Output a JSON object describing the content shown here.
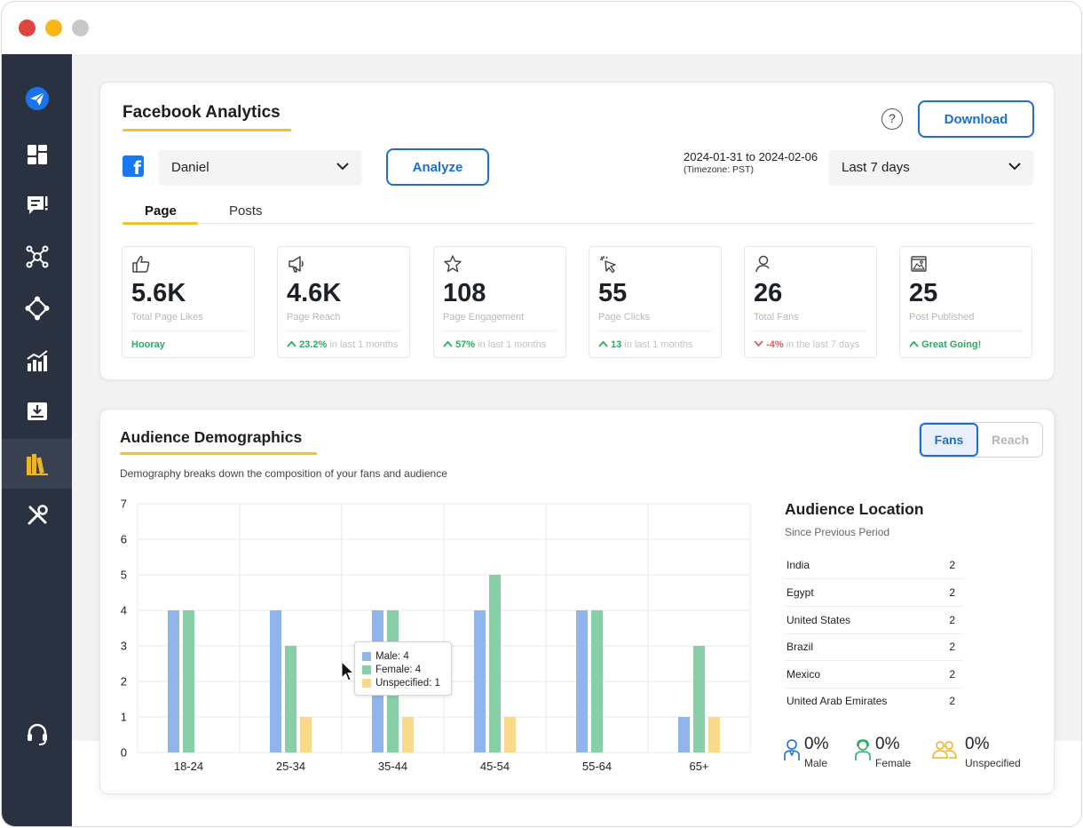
{
  "window": {
    "controls": [
      "close",
      "minimize",
      "zoom"
    ]
  },
  "sidebar": {
    "items": [
      {
        "icon": "paper-plane-logo-icon",
        "active": false
      },
      {
        "icon": "dashboard-icon",
        "active": false
      },
      {
        "icon": "message-alert-icon",
        "active": false
      },
      {
        "icon": "network-icon",
        "active": false
      },
      {
        "icon": "integration-icon",
        "active": false
      },
      {
        "icon": "analytics-icon",
        "active": false
      },
      {
        "icon": "inbox-download-icon",
        "active": false
      },
      {
        "icon": "library-icon",
        "active": true
      },
      {
        "icon": "tools-icon",
        "active": false
      },
      {
        "icon": "headset-support-icon",
        "active": false
      }
    ]
  },
  "analytics": {
    "title": "Facebook Analytics",
    "help_label": "?",
    "download_label": "Download",
    "account_label": "Daniel",
    "analyze_label": "Analyze",
    "date_range": "2024-01-31 to 2024-02-06",
    "timezone": "(Timezone: PST)",
    "period_label": "Last 7 days",
    "tabs": [
      {
        "label": "Page",
        "active": true
      },
      {
        "label": "Posts",
        "active": false
      }
    ],
    "stats": [
      {
        "icon": "thumbs-up-icon",
        "value": "5.6K",
        "label": "Total Page Likes",
        "trend": "",
        "trend_value": "Hooray",
        "trend_text": "",
        "color": "#27ae60"
      },
      {
        "icon": "megaphone-icon",
        "value": "4.6K",
        "label": "Page Reach",
        "trend": "up",
        "trend_value": "23.2%",
        "trend_text": "in last 1 months",
        "color": "#27ae60"
      },
      {
        "icon": "star-icon",
        "value": "108",
        "label": "Page Engagement",
        "trend": "up",
        "trend_value": "57%",
        "trend_text": "in last 1 months",
        "color": "#27ae60"
      },
      {
        "icon": "cursor-click-icon",
        "value": "55",
        "label": "Page Clicks",
        "trend": "up",
        "trend_value": "13",
        "trend_text": "in last 1 months",
        "color": "#27ae60"
      },
      {
        "icon": "user-icon",
        "value": "26",
        "label": "Total Fans",
        "trend": "down",
        "trend_value": "-4%",
        "trend_text": "in the last 7 days",
        "color": "#e45b5b"
      },
      {
        "icon": "image-icon",
        "value": "25",
        "label": "Post Published",
        "trend": "up",
        "trend_value": "Great Going!",
        "trend_text": "",
        "color": "#27ae60"
      }
    ]
  },
  "demographics": {
    "title": "Audience Demographics",
    "description": "Demography breaks down the composition of your fans and audience",
    "toggle": {
      "fans_label": "Fans",
      "reach_label": "Reach",
      "selected": "Fans"
    },
    "tooltip": {
      "rows": [
        {
          "label": "Male: 4",
          "color": "#8fb5ec"
        },
        {
          "label": "Female: 4",
          "color": "#87cfa7"
        },
        {
          "label": "Unspecified: 1",
          "color": "#f9d98a"
        }
      ]
    },
    "location": {
      "title": "Audience Location",
      "subtitle": "Since Previous Period",
      "rows": [
        {
          "name": "India",
          "value": "2"
        },
        {
          "name": "Egypt",
          "value": "2"
        },
        {
          "name": "United States",
          "value": "2"
        },
        {
          "name": "Brazil",
          "value": "2"
        },
        {
          "name": "Mexico",
          "value": "2"
        },
        {
          "name": "United Arab Emirates",
          "value": "2"
        }
      ]
    },
    "gender": [
      {
        "icon": "male-person-icon",
        "value": "0%",
        "label": "Male",
        "color": "#1a6fd1"
      },
      {
        "icon": "female-person-icon",
        "value": "0%",
        "label": "Female",
        "color": "#27ae60"
      },
      {
        "icon": "group-people-icon",
        "value": "0%",
        "label": "Unspecified",
        "color": "#f0b429"
      }
    ]
  },
  "chart_data": {
    "type": "bar",
    "categories": [
      "18-24",
      "25-34",
      "35-44",
      "45-54",
      "55-64",
      "65+"
    ],
    "series": [
      {
        "name": "Male",
        "values": [
          4,
          4,
          4,
          4,
          4,
          1
        ],
        "color": "#8fb5ec"
      },
      {
        "name": "Female",
        "values": [
          4,
          3,
          4,
          5,
          4,
          3
        ],
        "color": "#87cfa7"
      },
      {
        "name": "Unspecified",
        "values": [
          0,
          1,
          1,
          1,
          0,
          1
        ],
        "color": "#f9d98a"
      }
    ],
    "ylim": [
      0,
      7
    ],
    "yticks": [
      0,
      1,
      2,
      3,
      4,
      5,
      6,
      7
    ],
    "grid": true,
    "title": "",
    "xlabel": "",
    "ylabel": ""
  }
}
